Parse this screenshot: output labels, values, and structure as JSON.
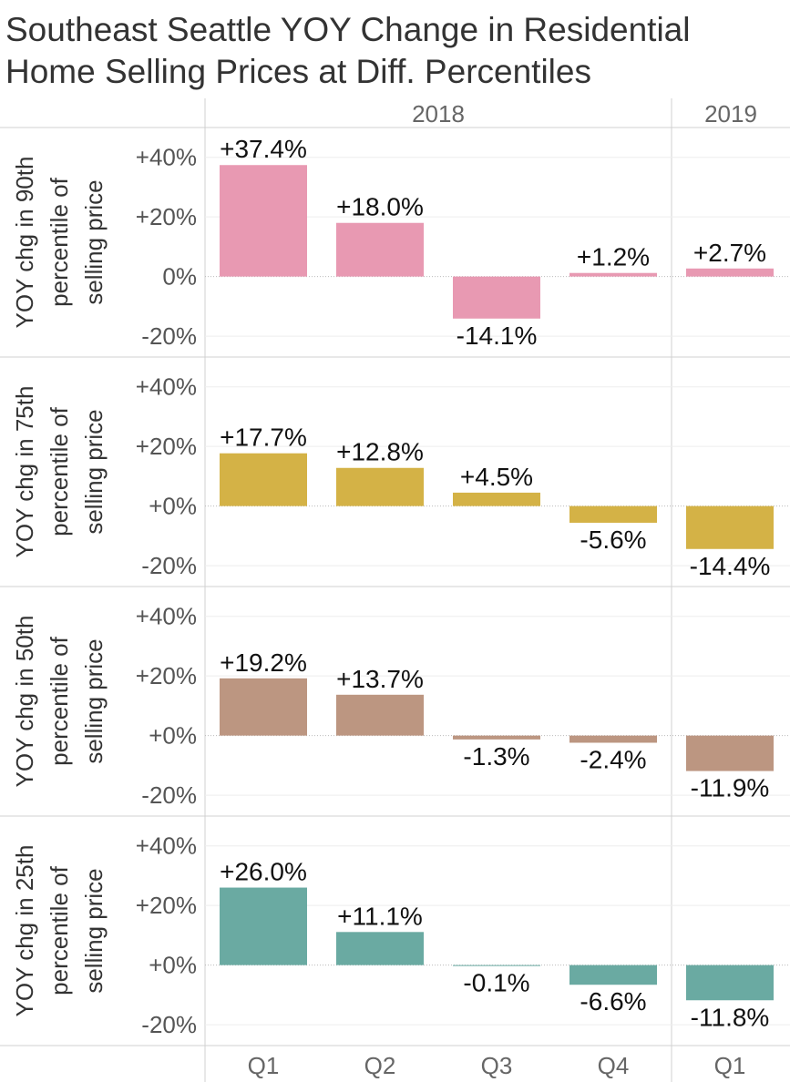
{
  "chart_data": {
    "type": "bar",
    "title": [
      "Southeast Seattle YOY Change in Residential",
      "Home Selling Prices at Diff. Percentiles"
    ],
    "years": [
      {
        "label": "2018",
        "quarters": [
          "Q1",
          "Q2",
          "Q3",
          "Q4"
        ]
      },
      {
        "label": "2019",
        "quarters": [
          "Q1"
        ]
      }
    ],
    "categories": [
      "2018 Q1",
      "2018 Q2",
      "2018 Q3",
      "2018 Q4",
      "2019 Q1"
    ],
    "ylim": [
      -27,
      50
    ],
    "grid": true,
    "panels": [
      {
        "ylabel": [
          "YOY chg in 90th",
          "percentile of",
          "selling price"
        ],
        "color": "#e899b2",
        "ticks": [
          "+40%",
          "+20%",
          "0%",
          "-20%"
        ],
        "values": [
          37.4,
          18.0,
          -14.1,
          1.2,
          2.7
        ],
        "labels": [
          "+37.4%",
          "+18.0%",
          "-14.1%",
          "+1.2%",
          "+2.7%"
        ]
      },
      {
        "ylabel": [
          "YOY chg in 75th",
          "percentile of",
          "selling price"
        ],
        "color": "#d4b246",
        "ticks": [
          "+40%",
          "+20%",
          "+0%",
          "-20%"
        ],
        "values": [
          17.7,
          12.8,
          4.5,
          -5.6,
          -14.4
        ],
        "labels": [
          "+17.7%",
          "+12.8%",
          "+4.5%",
          "-5.6%",
          "-14.4%"
        ]
      },
      {
        "ylabel": [
          "YOY chg in 50th",
          "percentile of",
          "selling price"
        ],
        "color": "#bc9681",
        "ticks": [
          "+40%",
          "+20%",
          "+0%",
          "-20%"
        ],
        "values": [
          19.2,
          13.7,
          -1.3,
          -2.4,
          -11.9
        ],
        "labels": [
          "+19.2%",
          "+13.7%",
          "-1.3%",
          "-2.4%",
          "-11.9%"
        ]
      },
      {
        "ylabel": [
          "YOY chg in 25th",
          "percentile of",
          "selling price"
        ],
        "color": "#6aaaa2",
        "ticks": [
          "+40%",
          "+20%",
          "+0%",
          "-20%"
        ],
        "values": [
          26.0,
          11.1,
          -0.1,
          -6.6,
          -11.8
        ],
        "labels": [
          "+26.0%",
          "+11.1%",
          "-0.1%",
          "-6.6%",
          "-11.8%"
        ]
      }
    ]
  }
}
